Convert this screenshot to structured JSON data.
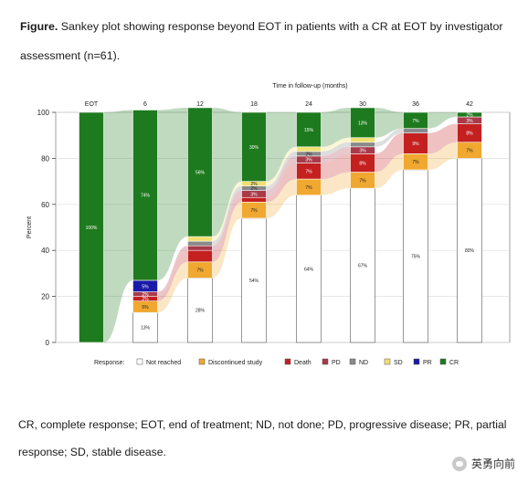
{
  "figure": {
    "label": "Figure.",
    "title_line1": "Sankey plot showing response beyond EOT in patients with a CR at EOT by investigator",
    "title_line2": "assessment (n=61).",
    "footnote_line1": "CR, complete response; EOT, end of treatment; ND, not done; PD, progressive disease; PR, partial",
    "footnote_line2": "response; SD, stable disease.",
    "watermark": "英勇向前"
  },
  "chart_data": {
    "type": "bar",
    "title": "",
    "top_axis_label": "Time in follow-up (months)",
    "ylabel": "Percent",
    "ylim": [
      0,
      100
    ],
    "y_ticks": [
      0,
      20,
      40,
      60,
      80,
      100
    ],
    "categories": [
      "EOT",
      "6",
      "12",
      "18",
      "24",
      "30",
      "36",
      "42"
    ],
    "grid": true,
    "legend_position": "bottom",
    "legend_title": "Response:",
    "colors": {
      "Not reached": "#ffffff",
      "Discontinued study": "#f0a830",
      "Death": "#c42020",
      "PD": "#a83a4a",
      "ND": "#8a8a8a",
      "SD": "#f0e070",
      "PR": "#1a1aa8",
      "CR": "#1e7a1e"
    },
    "series": [
      {
        "name": "Not reached",
        "values": [
          0,
          13,
          28,
          54,
          64,
          67,
          75,
          80
        ]
      },
      {
        "name": "Discontinued study",
        "values": [
          0,
          5,
          7,
          7,
          7,
          7,
          7,
          7
        ]
      },
      {
        "name": "Death",
        "values": [
          0,
          2,
          5,
          2,
          7,
          8,
          9,
          8
        ]
      },
      {
        "name": "PD",
        "values": [
          0,
          2,
          2,
          3,
          3,
          3,
          0,
          3
        ]
      },
      {
        "name": "ND",
        "values": [
          0,
          0,
          2,
          2,
          2,
          2,
          2,
          0
        ]
      },
      {
        "name": "SD",
        "values": [
          0,
          0,
          2,
          2,
          2,
          2,
          0,
          0
        ]
      },
      {
        "name": "PR",
        "values": [
          0,
          5,
          0,
          0,
          0,
          0,
          0,
          0
        ]
      },
      {
        "name": "CR",
        "values": [
          100,
          74,
          56,
          30,
          15,
          13,
          7,
          2
        ]
      }
    ],
    "data_labels": [
      {
        "cat": "EOT",
        "series": "CR",
        "text": "100%"
      },
      {
        "cat": "6",
        "series": "Not reached",
        "text": "13%"
      },
      {
        "cat": "6",
        "series": "Discontinued study",
        "text": "5%"
      },
      {
        "cat": "6",
        "series": "Death",
        "text": "2%"
      },
      {
        "cat": "6",
        "series": "PD",
        "text": "2%"
      },
      {
        "cat": "6",
        "series": "PR",
        "text": "5%"
      },
      {
        "cat": "6",
        "series": "CR",
        "text": "74%"
      },
      {
        "cat": "12",
        "series": "Not reached",
        "text": "28%"
      },
      {
        "cat": "12",
        "series": "Discontinued study",
        "text": "7%"
      },
      {
        "cat": "12",
        "series": "CR",
        "text": "56%"
      },
      {
        "cat": "18",
        "series": "Not reached",
        "text": "54%"
      },
      {
        "cat": "18",
        "series": "Discontinued study",
        "text": "7%"
      },
      {
        "cat": "18",
        "series": "PD",
        "text": "3%"
      },
      {
        "cat": "18",
        "series": "ND",
        "text": "2%"
      },
      {
        "cat": "18",
        "series": "SD",
        "text": "2%"
      },
      {
        "cat": "18",
        "series": "CR",
        "text": "30%"
      },
      {
        "cat": "24",
        "series": "Not reached",
        "text": "64%"
      },
      {
        "cat": "24",
        "series": "Discontinued study",
        "text": "7%"
      },
      {
        "cat": "24",
        "series": "Death",
        "text": "7%"
      },
      {
        "cat": "24",
        "series": "PD",
        "text": "3%"
      },
      {
        "cat": "24",
        "series": "ND",
        "text": "2%"
      },
      {
        "cat": "24",
        "series": "CR",
        "text": "15%"
      },
      {
        "cat": "30",
        "series": "Not reached",
        "text": "67%"
      },
      {
        "cat": "30",
        "series": "Discontinued study",
        "text": "7%"
      },
      {
        "cat": "30",
        "series": "Death",
        "text": "8%"
      },
      {
        "cat": "30",
        "series": "PD",
        "text": "3%"
      },
      {
        "cat": "30",
        "series": "CR",
        "text": "13%"
      },
      {
        "cat": "36",
        "series": "Not reached",
        "text": "75%"
      },
      {
        "cat": "36",
        "series": "Discontinued study",
        "text": "7%"
      },
      {
        "cat": "36",
        "series": "Death",
        "text": "9%"
      },
      {
        "cat": "36",
        "series": "CR",
        "text": "7%"
      },
      {
        "cat": "42",
        "series": "Not reached",
        "text": "80%"
      },
      {
        "cat": "42",
        "series": "Discontinued study",
        "text": "7%"
      },
      {
        "cat": "42",
        "series": "Death",
        "text": "8%"
      },
      {
        "cat": "42",
        "series": "PD",
        "text": "3%"
      },
      {
        "cat": "42",
        "series": "CR",
        "text": "2%"
      }
    ]
  }
}
